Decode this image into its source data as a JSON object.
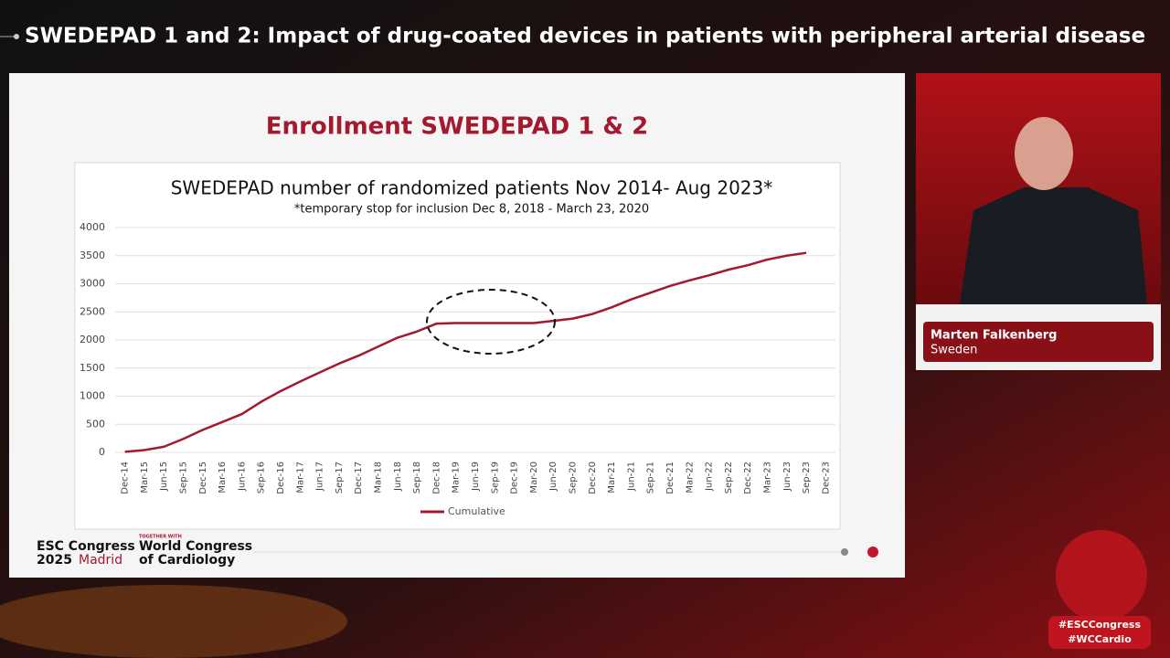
{
  "header": {
    "title": "SWEDEPAD 1 and 2: Impact of drug-coated devices in patients with peripheral arterial disease"
  },
  "slide": {
    "title": "Enrollment SWEDEPAD 1 & 2"
  },
  "chart_data": {
    "type": "line",
    "title": "SWEDEPAD number of randomized patients Nov 2014- Aug 2023*",
    "subtitle": "*temporary stop for inclusion Dec 8, 2018 - March 23, 2020",
    "categories": [
      "Dec-14",
      "Mar-15",
      "Jun-15",
      "Sep-15",
      "Dec-15",
      "Mar-16",
      "Jun-16",
      "Sep-16",
      "Dec-16",
      "Mar-17",
      "Jun-17",
      "Sep-17",
      "Dec-17",
      "Mar-18",
      "Jun-18",
      "Sep-18",
      "Dec-18",
      "Mar-19",
      "Jun-19",
      "Sep-19",
      "Dec-19",
      "Mar-20",
      "Jun-20",
      "Sep-20",
      "Dec-20",
      "Mar-21",
      "Jun-21",
      "Sep-21",
      "Dec-21",
      "Mar-22",
      "Jun-22",
      "Sep-22",
      "Dec-22",
      "Mar-23",
      "Jun-23",
      "Sep-23",
      "Dec-23"
    ],
    "series": [
      {
        "name": "Cumulative",
        "color": "#a3192f",
        "values": [
          10,
          40,
          100,
          240,
          400,
          540,
          680,
          900,
          1090,
          1260,
          1420,
          1580,
          1720,
          1880,
          2040,
          2150,
          2290,
          2300,
          2300,
          2300,
          2300,
          2300,
          2340,
          2380,
          2460,
          2580,
          2720,
          2840,
          2960,
          3060,
          3150,
          3250,
          3330,
          3430,
          3500,
          3550,
          null
        ]
      }
    ],
    "ylim": [
      0,
      4000
    ],
    "yticks": [
      0,
      500,
      1000,
      1500,
      2000,
      2500,
      3000,
      3500,
      4000
    ],
    "grid": true,
    "legend": "bottom"
  },
  "speaker": {
    "name": "Marten Falkenberg",
    "country": "Sweden"
  },
  "branding": {
    "esc": "ESC Congress",
    "year": "2025",
    "city": "Madrid",
    "together": "TOGETHER WITH",
    "wcc1": "World Congress",
    "wcc2": "of Cardiology"
  },
  "hashtags": [
    "#ESCCongress",
    "#WCCardio"
  ]
}
